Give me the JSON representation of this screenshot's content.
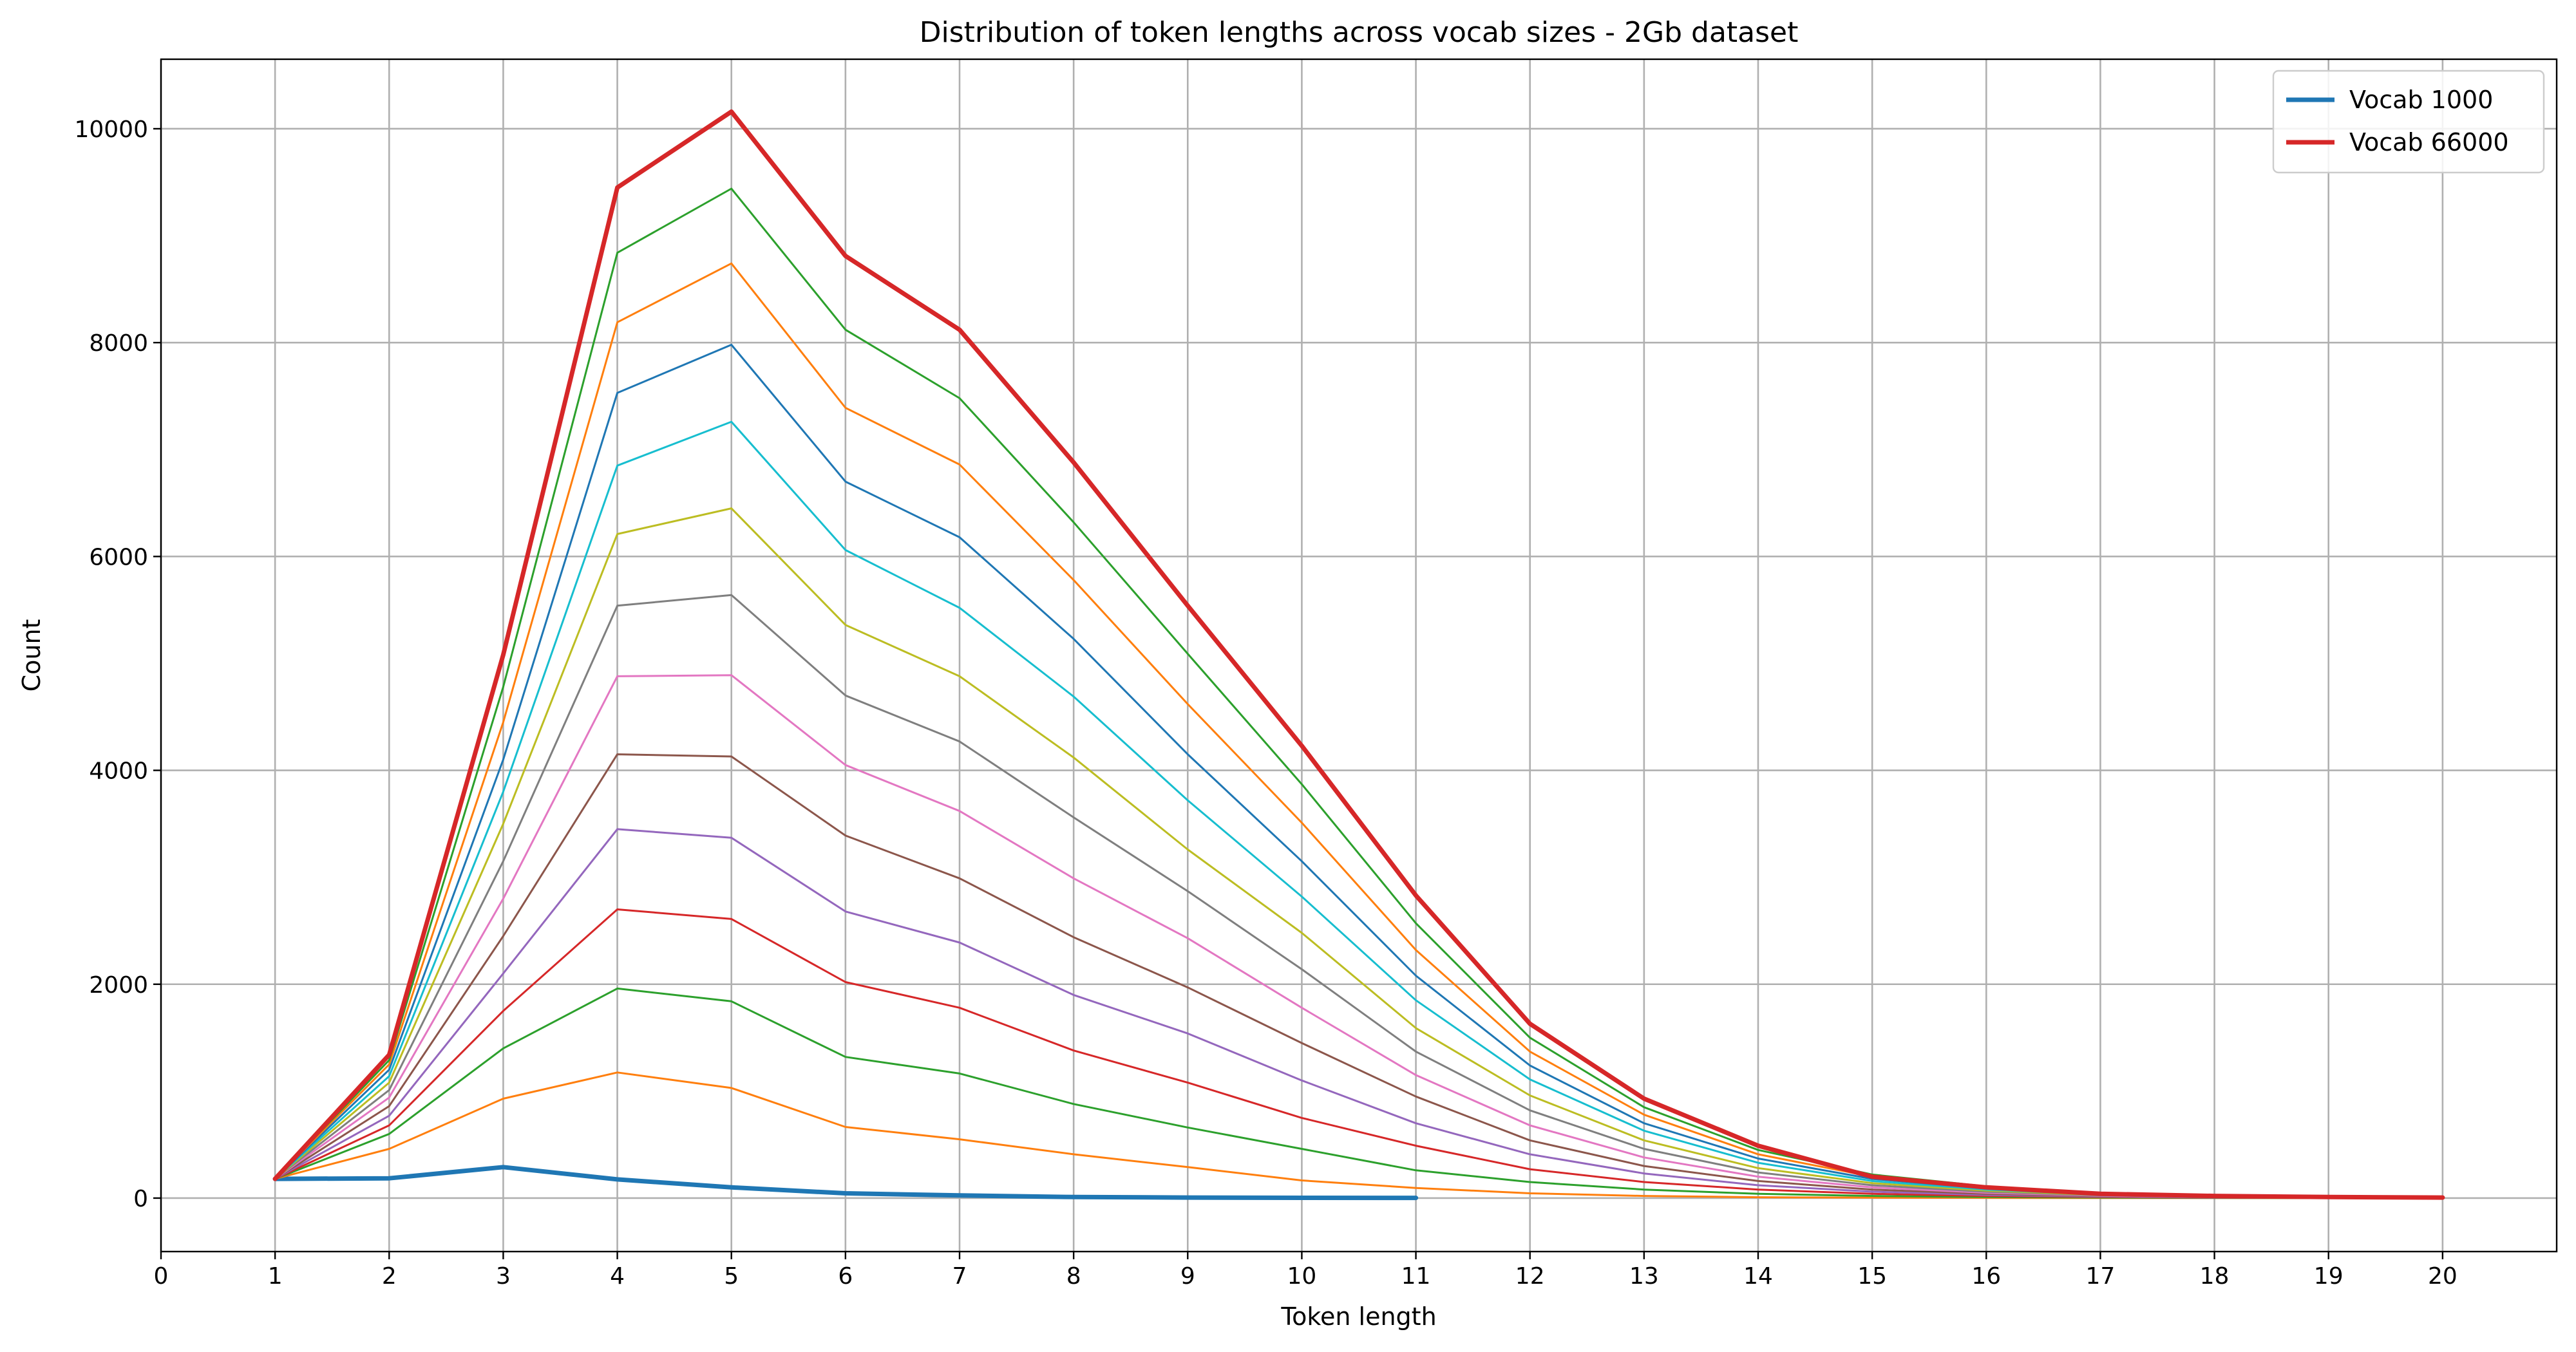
{
  "chart_data": {
    "type": "line",
    "title": "Distribution of token lengths across vocab sizes - 2Gb dataset",
    "xlabel": "Token length",
    "ylabel": "Count",
    "xlim": [
      0,
      21
    ],
    "ylim": [
      -500,
      10650
    ],
    "xticks": [
      0,
      1,
      2,
      3,
      4,
      5,
      6,
      7,
      8,
      9,
      10,
      11,
      12,
      13,
      14,
      15,
      16,
      17,
      18,
      19,
      20
    ],
    "yticks": [
      0,
      2000,
      4000,
      6000,
      8000,
      10000
    ],
    "grid": true,
    "legend_position": "top-right",
    "series": [
      {
        "name": "Vocab 1000",
        "color": "#1f77b4",
        "bold": true,
        "x": [
          1,
          2,
          3,
          4,
          5,
          6,
          7,
          8,
          9,
          10,
          11
        ],
        "y": [
          180,
          185,
          290,
          175,
          100,
          45,
          25,
          10,
          5,
          3,
          2
        ]
      },
      {
        "color": "#ff7f0e",
        "x": [
          1,
          2,
          3,
          4,
          5,
          6,
          7,
          8,
          9,
          10,
          11,
          12,
          13,
          14,
          15,
          16,
          17,
          18,
          19,
          20
        ],
        "y": [
          180,
          460,
          930,
          1175,
          1030,
          665,
          550,
          410,
          290,
          165,
          95,
          45,
          20,
          8,
          4,
          2,
          1,
          1,
          0,
          0
        ]
      },
      {
        "color": "#2ca02c",
        "x": [
          1,
          2,
          3,
          4,
          5,
          6,
          7,
          8,
          9,
          10,
          11,
          12,
          13,
          14,
          15,
          16,
          17,
          18,
          19,
          20
        ],
        "y": [
          180,
          600,
          1400,
          1960,
          1840,
          1320,
          1165,
          880,
          660,
          460,
          260,
          150,
          80,
          40,
          20,
          10,
          5,
          2,
          1,
          0
        ]
      },
      {
        "color": "#d62728",
        "x": [
          1,
          2,
          3,
          4,
          5,
          6,
          7,
          8,
          9,
          10,
          11,
          12,
          13,
          14,
          15,
          16,
          17,
          18,
          19,
          20
        ],
        "y": [
          180,
          680,
          1750,
          2700,
          2610,
          2020,
          1780,
          1380,
          1080,
          750,
          490,
          270,
          150,
          80,
          40,
          20,
          10,
          4,
          2,
          1
        ]
      },
      {
        "color": "#9467bd",
        "x": [
          1,
          2,
          3,
          4,
          5,
          6,
          7,
          8,
          9,
          10,
          11,
          12,
          13,
          14,
          15,
          16,
          17,
          18,
          19,
          20
        ],
        "y": [
          180,
          770,
          2100,
          3450,
          3370,
          2680,
          2390,
          1900,
          1540,
          1100,
          700,
          410,
          230,
          120,
          60,
          30,
          14,
          6,
          3,
          1
        ]
      },
      {
        "color": "#8c564b",
        "x": [
          1,
          2,
          3,
          4,
          5,
          6,
          7,
          8,
          9,
          10,
          11,
          12,
          13,
          14,
          15,
          16,
          17,
          18,
          19,
          20
        ],
        "y": [
          180,
          860,
          2450,
          4150,
          4130,
          3390,
          2990,
          2440,
          1970,
          1450,
          950,
          540,
          300,
          160,
          80,
          40,
          18,
          8,
          3,
          1
        ]
      },
      {
        "color": "#e377c2",
        "x": [
          1,
          2,
          3,
          4,
          5,
          6,
          7,
          8,
          9,
          10,
          11,
          12,
          13,
          14,
          15,
          16,
          17,
          18,
          19,
          20
        ],
        "y": [
          180,
          940,
          2800,
          4880,
          4890,
          4050,
          3620,
          2990,
          2430,
          1780,
          1150,
          680,
          380,
          200,
          100,
          50,
          22,
          9,
          4,
          1
        ]
      },
      {
        "color": "#7f7f7f",
        "x": [
          1,
          2,
          3,
          4,
          5,
          6,
          7,
          8,
          9,
          10,
          11,
          12,
          13,
          14,
          15,
          16,
          17,
          18,
          19,
          20
        ],
        "y": [
          180,
          1010,
          3150,
          5540,
          5640,
          4700,
          4270,
          3560,
          2870,
          2140,
          1370,
          820,
          460,
          240,
          120,
          60,
          26,
          11,
          4,
          1
        ]
      },
      {
        "color": "#bcbd22",
        "x": [
          1,
          2,
          3,
          4,
          5,
          6,
          7,
          8,
          9,
          10,
          11,
          12,
          13,
          14,
          15,
          16,
          17,
          18,
          19,
          20
        ],
        "y": [
          180,
          1080,
          3500,
          6210,
          6450,
          5360,
          4880,
          4120,
          3260,
          2480,
          1590,
          960,
          540,
          280,
          140,
          70,
          30,
          12,
          5,
          1
        ]
      },
      {
        "color": "#17becf",
        "x": [
          1,
          2,
          3,
          4,
          5,
          6,
          7,
          8,
          9,
          10,
          11,
          12,
          13,
          14,
          15,
          16,
          17,
          18,
          19,
          20
        ],
        "y": [
          180,
          1140,
          3800,
          6850,
          7260,
          6060,
          5520,
          4690,
          3720,
          2820,
          1850,
          1110,
          630,
          330,
          160,
          80,
          34,
          13,
          5,
          1
        ]
      },
      {
        "color": "#1f77b4",
        "x": [
          1,
          2,
          3,
          4,
          5,
          6,
          7,
          8,
          9,
          10,
          11,
          12,
          13,
          14,
          15,
          16,
          17,
          18,
          19,
          20
        ],
        "y": [
          180,
          1200,
          4100,
          7530,
          7980,
          6700,
          6180,
          5230,
          4150,
          3150,
          2080,
          1240,
          700,
          370,
          180,
          90,
          38,
          15,
          6,
          1
        ]
      },
      {
        "color": "#ff7f0e",
        "x": [
          1,
          2,
          3,
          4,
          5,
          6,
          7,
          8,
          9,
          10,
          11,
          12,
          13,
          14,
          15,
          16,
          17,
          18,
          19,
          20
        ],
        "y": [
          180,
          1250,
          4450,
          8190,
          8740,
          7390,
          6860,
          5780,
          4620,
          3510,
          2320,
          1370,
          780,
          410,
          200,
          100,
          42,
          16,
          6,
          1
        ]
      },
      {
        "color": "#2ca02c",
        "x": [
          1,
          2,
          3,
          4,
          5,
          6,
          7,
          8,
          9,
          10,
          11,
          12,
          13,
          14,
          15,
          16,
          17,
          18,
          19,
          20
        ],
        "y": [
          180,
          1290,
          4780,
          8840,
          9440,
          8120,
          7480,
          6320,
          5090,
          3870,
          2570,
          1500,
          850,
          450,
          220,
          110,
          46,
          18,
          7,
          2
        ]
      },
      {
        "name": "Vocab 66000",
        "color": "#d62728",
        "bold": true,
        "x": [
          1,
          2,
          3,
          4,
          5,
          6,
          7,
          8,
          9,
          10,
          11,
          12,
          13,
          14,
          15,
          16,
          17,
          18,
          19,
          20
        ],
        "y": [
          180,
          1340,
          5080,
          9450,
          10160,
          8810,
          8120,
          6880,
          5540,
          4230,
          2830,
          1630,
          930,
          490,
          200,
          100,
          40,
          20,
          10,
          5
        ]
      }
    ]
  }
}
